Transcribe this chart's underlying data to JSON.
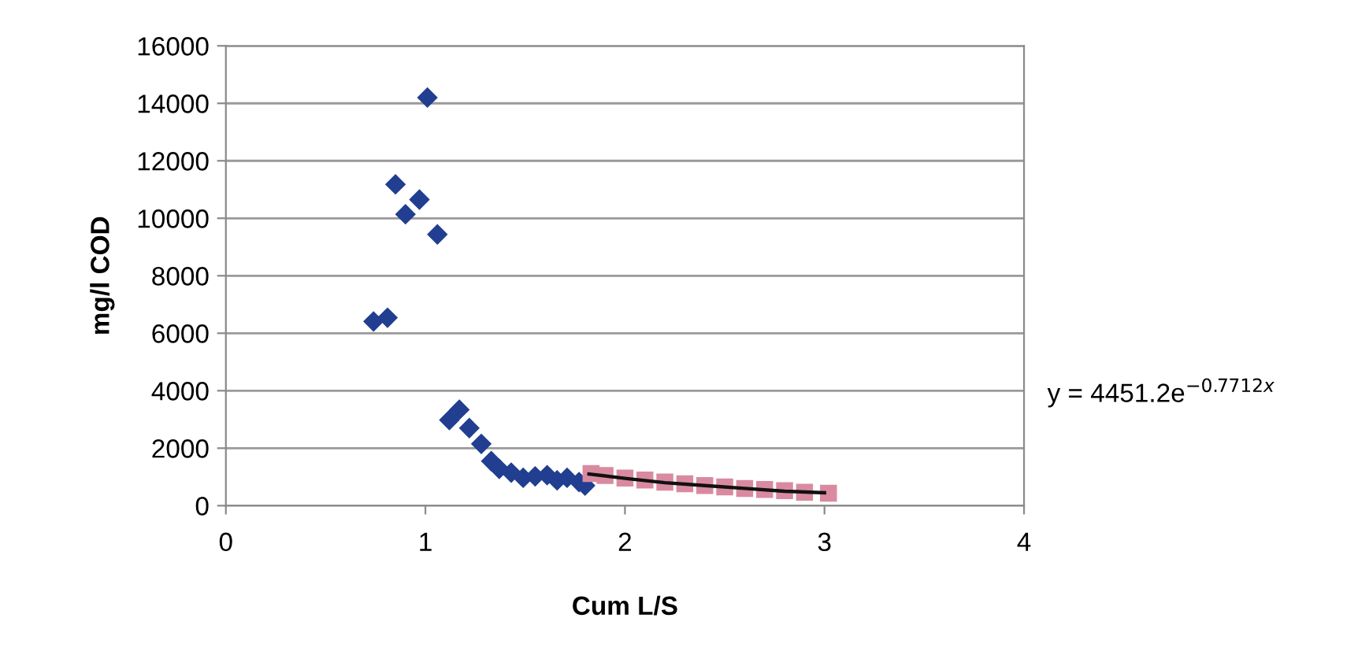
{
  "chart_data": {
    "type": "scatter",
    "xlabel": "Cum L/S",
    "ylabel": "mg/l COD",
    "xlim": [
      0,
      4
    ],
    "xticks": [
      0,
      1,
      2,
      3,
      4
    ],
    "ylim": [
      0,
      16000
    ],
    "yticks": [
      0,
      2000,
      4000,
      6000,
      8000,
      10000,
      12000,
      14000,
      16000
    ],
    "grid": "y",
    "annotations": [
      "y = 4451.2e$^{−0.7712x}$"
    ],
    "series": [
      {
        "marker": "diamond",
        "color": "#213e90",
        "x": [
          0.74,
          0.81,
          0.85,
          0.9,
          0.97,
          1.01,
          1.06,
          1.12,
          1.17,
          1.22,
          1.28,
          1.33,
          1.37,
          1.43,
          1.49,
          1.55,
          1.61,
          1.66,
          1.71,
          1.77,
          1.8
        ],
        "values": [
          6410,
          6540,
          11180,
          10140,
          10650,
          14200,
          9440,
          2980,
          3340,
          2700,
          2150,
          1550,
          1280,
          1150,
          970,
          1020,
          1060,
          880,
          970,
          820,
          700
        ]
      },
      {
        "marker": "square",
        "color": "#d98aa0",
        "x": [
          1.83,
          1.9,
          2.0,
          2.1,
          2.2,
          2.3,
          2.4,
          2.5,
          2.6,
          2.7,
          2.8,
          2.9,
          3.02
        ],
        "values": [
          1120,
          1050,
          960,
          890,
          820,
          760,
          700,
          650,
          600,
          560,
          520,
          470,
          430
        ]
      },
      {
        "type": "line",
        "marker": "none",
        "line_style": "solid",
        "color": "#111111",
        "x": [
          1.82,
          2.0,
          2.2,
          2.4,
          2.6,
          2.8,
          3.0
        ],
        "values": [
          1100,
          950,
          800,
          700,
          600,
          500,
          450
        ]
      }
    ]
  }
}
